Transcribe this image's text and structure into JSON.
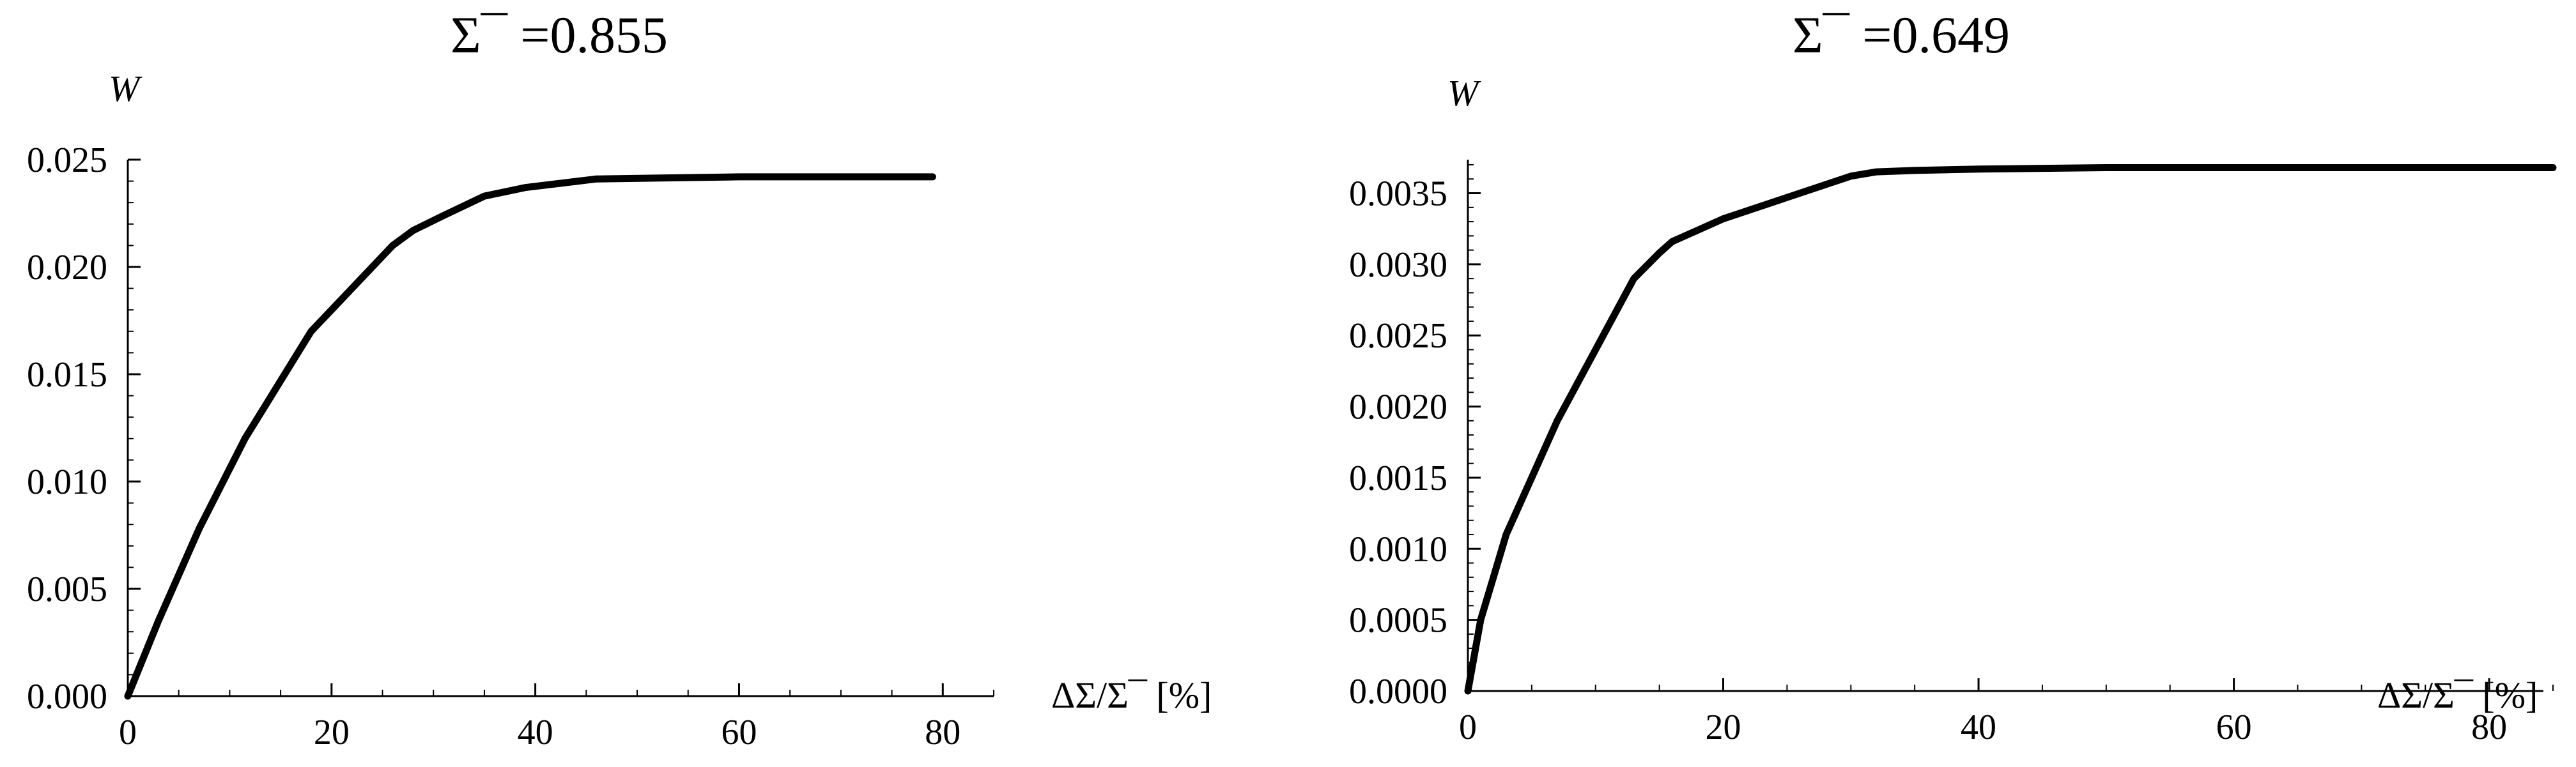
{
  "chart_data": [
    {
      "type": "line",
      "title": "Σ¯ =0.855",
      "ylabel": "W",
      "xlabel": "ΔΣ/Σ¯  [%]",
      "xlim": [
        0,
        85
      ],
      "ylim": [
        0,
        0.025
      ],
      "xticks": [
        0,
        20,
        40,
        60,
        80
      ],
      "xtick_labels": [
        "0",
        "20",
        "40",
        "60",
        "80"
      ],
      "yticks": [
        0,
        0.005,
        0.01,
        0.015,
        0.02,
        0.025
      ],
      "ytick_labels": [
        "0.000",
        "0.005",
        "0.010",
        "0.015",
        "0.020",
        "0.025"
      ],
      "x_minor_step": 5,
      "y_minor_step": 0.001,
      "grid": false,
      "series": [
        {
          "x": [
            0,
            3,
            7,
            11.5,
            18,
            26,
            28,
            31,
            35,
            39,
            46,
            60,
            79
          ],
          "y": [
            0,
            0.0035,
            0.0078,
            0.012,
            0.017,
            0.021,
            0.0217,
            0.0224,
            0.0233,
            0.0237,
            0.0241,
            0.0242,
            0.0242
          ]
        }
      ]
    },
    {
      "type": "line",
      "title": "Σ¯ =0.649",
      "ylabel": "W",
      "xlabel": "ΔΣ/Σ¯  [%]",
      "xlim": [
        0,
        85
      ],
      "ylim": [
        0,
        0.0037
      ],
      "xticks": [
        0,
        20,
        40,
        60,
        80
      ],
      "xtick_labels": [
        "0",
        "20",
        "40",
        "60",
        "80"
      ],
      "yticks": [
        0,
        0.0005,
        0.001,
        0.0015,
        0.002,
        0.0025,
        0.003,
        0.0035
      ],
      "ytick_labels": [
        "0.0000",
        "0.0005",
        "0.0010",
        "0.0015",
        "0.0020",
        "0.0025",
        "0.0030",
        "0.0035"
      ],
      "x_minor_step": 5,
      "y_minor_step": 0.0001,
      "grid": false,
      "series": [
        {
          "x": [
            0,
            1,
            2,
            3,
            5,
            7,
            10,
            13,
            15,
            16,
            17,
            20,
            25,
            28,
            30,
            32,
            35,
            40,
            50,
            60,
            85
          ],
          "y": [
            0,
            0.0005,
            0.0008,
            0.0011,
            0.0015,
            0.0019,
            0.0024,
            0.0029,
            0.00308,
            0.00316,
            0.0032,
            0.00332,
            0.00347,
            0.00356,
            0.00362,
            0.00365,
            0.00366,
            0.00367,
            0.00368,
            0.00368,
            0.00368
          ]
        }
      ]
    }
  ]
}
